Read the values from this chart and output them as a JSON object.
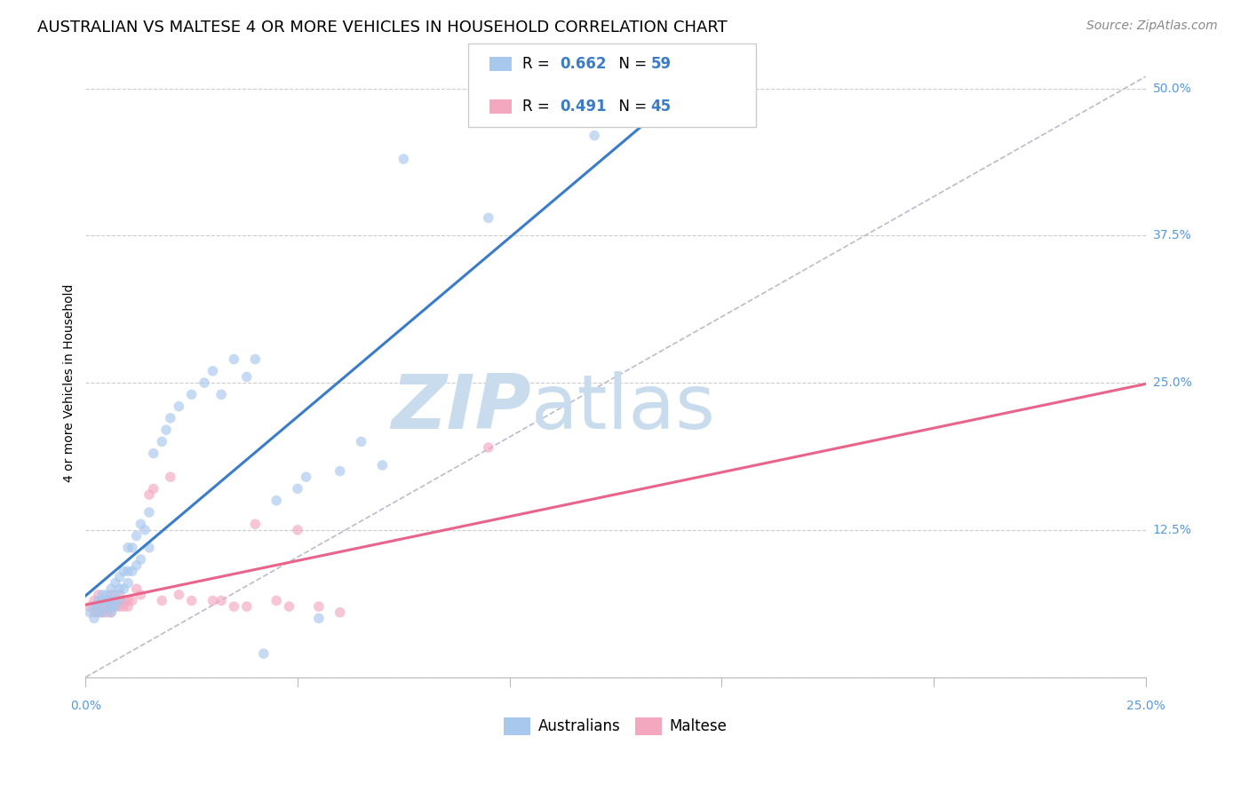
{
  "title": "AUSTRALIAN VS MALTESE 4 OR MORE VEHICLES IN HOUSEHOLD CORRELATION CHART",
  "source": "Source: ZipAtlas.com",
  "ylabel": "4 or more Vehicles in Household",
  "xmin": 0.0,
  "xmax": 0.25,
  "ymin": -0.02,
  "ymax": 0.52,
  "yticks": [
    0.0,
    0.125,
    0.25,
    0.375,
    0.5
  ],
  "ytick_labels": [
    "",
    "12.5%",
    "25.0%",
    "37.5%",
    "50.0%"
  ],
  "xtick_positions": [
    0.0,
    0.05,
    0.1,
    0.15,
    0.2,
    0.25
  ],
  "blue_color": "#A8C8EE",
  "pink_color": "#F4A8C0",
  "blue_line_color": "#3A7CC8",
  "pink_line_color": "#E8648A",
  "dashed_line_color": "#BBBBCC",
  "R_australian": "0.662",
  "N_australian": "59",
  "R_maltese": "0.491",
  "N_maltese": "45",
  "legend_label_australian": "Australians",
  "legend_label_maltese": "Maltese",
  "watermark_zip": "ZIP",
  "watermark_atlas": "atlas",
  "watermark_color": "#C8DCEE",
  "title_fontsize": 13,
  "axis_label_fontsize": 10,
  "tick_label_color": "#5599DD",
  "tick_fontsize": 10,
  "legend_fontsize": 13,
  "source_fontsize": 10,
  "marker_size": 70,
  "marker_alpha": 0.65,
  "line_width": 2.2,
  "australian_x": [
    0.001,
    0.002,
    0.002,
    0.003,
    0.003,
    0.003,
    0.004,
    0.004,
    0.004,
    0.005,
    0.005,
    0.005,
    0.006,
    0.006,
    0.006,
    0.006,
    0.007,
    0.007,
    0.007,
    0.008,
    0.008,
    0.008,
    0.009,
    0.009,
    0.01,
    0.01,
    0.01,
    0.011,
    0.011,
    0.012,
    0.012,
    0.013,
    0.013,
    0.014,
    0.015,
    0.015,
    0.016,
    0.018,
    0.019,
    0.02,
    0.022,
    0.025,
    0.028,
    0.03,
    0.032,
    0.035,
    0.038,
    0.04,
    0.042,
    0.045,
    0.05,
    0.052,
    0.055,
    0.06,
    0.065,
    0.07,
    0.075,
    0.095,
    0.12
  ],
  "australian_y": [
    0.055,
    0.05,
    0.06,
    0.055,
    0.06,
    0.065,
    0.055,
    0.065,
    0.07,
    0.06,
    0.065,
    0.07,
    0.055,
    0.06,
    0.065,
    0.075,
    0.06,
    0.07,
    0.08,
    0.065,
    0.075,
    0.085,
    0.075,
    0.09,
    0.08,
    0.09,
    0.11,
    0.09,
    0.11,
    0.095,
    0.12,
    0.1,
    0.13,
    0.125,
    0.11,
    0.14,
    0.19,
    0.2,
    0.21,
    0.22,
    0.23,
    0.24,
    0.25,
    0.26,
    0.24,
    0.27,
    0.255,
    0.27,
    0.02,
    0.15,
    0.16,
    0.17,
    0.05,
    0.175,
    0.2,
    0.18,
    0.44,
    0.39,
    0.46
  ],
  "maltese_x": [
    0.001,
    0.002,
    0.002,
    0.003,
    0.003,
    0.003,
    0.004,
    0.004,
    0.004,
    0.005,
    0.005,
    0.005,
    0.006,
    0.006,
    0.006,
    0.006,
    0.007,
    0.007,
    0.008,
    0.008,
    0.008,
    0.009,
    0.009,
    0.01,
    0.01,
    0.011,
    0.012,
    0.013,
    0.015,
    0.016,
    0.018,
    0.02,
    0.022,
    0.025,
    0.03,
    0.032,
    0.035,
    0.038,
    0.04,
    0.045,
    0.048,
    0.05,
    0.055,
    0.06,
    0.095
  ],
  "maltese_y": [
    0.06,
    0.055,
    0.065,
    0.055,
    0.06,
    0.07,
    0.055,
    0.06,
    0.065,
    0.055,
    0.065,
    0.06,
    0.055,
    0.06,
    0.065,
    0.07,
    0.06,
    0.065,
    0.06,
    0.07,
    0.065,
    0.065,
    0.06,
    0.065,
    0.06,
    0.065,
    0.075,
    0.07,
    0.155,
    0.16,
    0.065,
    0.17,
    0.07,
    0.065,
    0.065,
    0.065,
    0.06,
    0.06,
    0.13,
    0.065,
    0.06,
    0.125,
    0.06,
    0.055,
    0.195
  ]
}
